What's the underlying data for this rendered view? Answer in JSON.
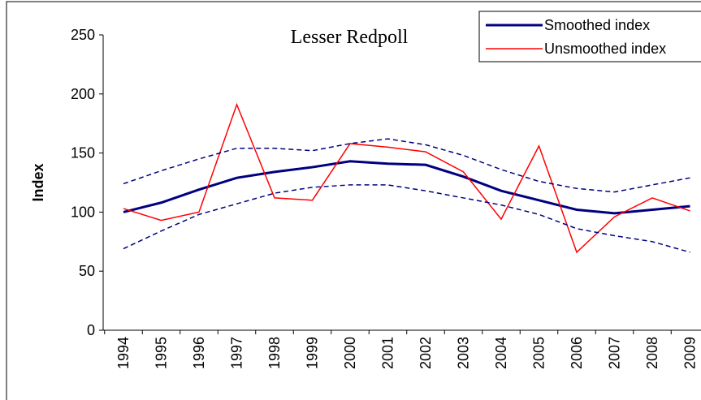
{
  "chart_data": {
    "type": "line",
    "title": "Lesser Redpoll",
    "ylabel": "Index",
    "categories": [
      "1994",
      "1995",
      "1996",
      "1997",
      "1998",
      "1999",
      "2000",
      "2001",
      "2002",
      "2003",
      "2004",
      "2005",
      "2006",
      "2007",
      "2008",
      "2009"
    ],
    "ylim": [
      0,
      250
    ],
    "yticks": [
      0,
      50,
      100,
      150,
      200,
      250
    ],
    "series": [
      {
        "name": "Smoothed index",
        "color": "#000080",
        "values": [
          100,
          108,
          119,
          129,
          134,
          138,
          143,
          141,
          140,
          130,
          118,
          110,
          102,
          99,
          102,
          105
        ]
      },
      {
        "name": "Unsmoothed index",
        "color": "#ff0000",
        "values": [
          103,
          93,
          100,
          191,
          112,
          110,
          158,
          155,
          151,
          134,
          94,
          156,
          66,
          96,
          112,
          101
        ]
      },
      {
        "color": "#000080",
        "dashed": true,
        "values": [
          124,
          135,
          145,
          154,
          154,
          152,
          158,
          162,
          157,
          148,
          136,
          126,
          120,
          117,
          123,
          129
        ]
      },
      {
        "color": "#000080",
        "dashed": true,
        "values": [
          69,
          84,
          98,
          107,
          116,
          121,
          123,
          123,
          118,
          112,
          106,
          98,
          86,
          80,
          75,
          66
        ]
      }
    ],
    "legend": "top-right"
  }
}
